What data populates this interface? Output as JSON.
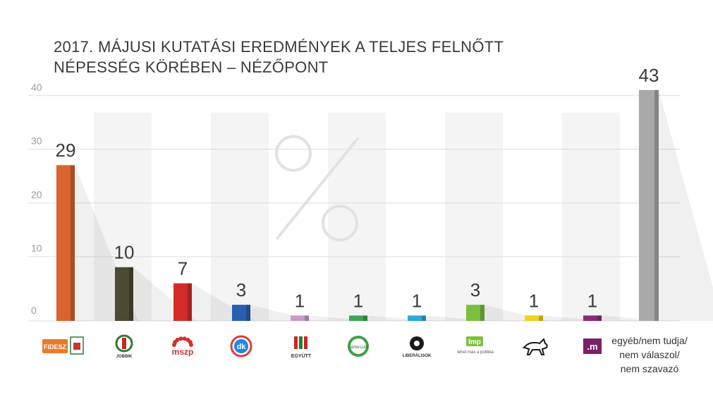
{
  "title_lines": [
    "2017. MÁJUSI KUTATÁSI EREDMÉNYEK A TELJES FELNŐTT",
    "NÉPESSÉG KÖRÉBEN – NÉZŐPONT"
  ],
  "chart_data": {
    "type": "bar",
    "title": "2017. MÁJUSI KUTATÁSI EREDMÉNYEK A TELJES FELNŐTT NÉPESSÉG KÖRÉBEN – NÉZŐPONT",
    "ylim": [
      0,
      43
    ],
    "yticks": [
      0,
      10,
      20,
      30,
      40
    ],
    "grid": true,
    "bars": [
      {
        "party": "FIDESZ-KDNP",
        "value": 29,
        "color": "#d9642e",
        "icon": "fidesz-kdnp-logo",
        "logo_text": "FIDESZ"
      },
      {
        "party": "JOBBIK",
        "value": 10,
        "color": "#4b4a32",
        "icon": "jobbik-logo",
        "logo_text": "JOBBIK"
      },
      {
        "party": "MSZP",
        "value": 7,
        "color": "#d42a2a",
        "icon": "mszp-logo",
        "logo_text": "mszp"
      },
      {
        "party": "DK",
        "value": 3,
        "color": "#2a5fb0",
        "icon": "dk-logo",
        "logo_text": "dk"
      },
      {
        "party": "EGYÜTT",
        "value": 1,
        "color": "#c89ac8",
        "icon": "egyutt-logo",
        "logo_text": "EGYÜTT"
      },
      {
        "party": "Párbeszéd",
        "value": 1,
        "color": "#3aa655",
        "icon": "parbeszed-logo",
        "logo_text": "párbeszéd"
      },
      {
        "party": "LIBERÁLISOK",
        "value": 1,
        "color": "#2ea9db",
        "icon": "liberalisok-logo",
        "logo_text": "LIBERÁLISOK"
      },
      {
        "party": "LMP",
        "value": 3,
        "color": "#7cbf3f",
        "icon": "lmp-logo",
        "logo_text": "lmp",
        "logo_subtext": "lehet más a politika"
      },
      {
        "party": "MKKP",
        "value": 1,
        "color": "#f2d21a",
        "icon": "kutya-party-logo"
      },
      {
        "party": "Momentum",
        "value": 1,
        "color": "#8a2a7a",
        "icon": "momentum-logo",
        "logo_text": ".m"
      },
      {
        "party": "egyéb/nem tudja/nem válaszol/nem szavazó",
        "value": 43,
        "color": "#a9a9a9",
        "icon": "",
        "label_lines": [
          "egyéb/nem tudja/",
          "nem válaszol/",
          "nem szavazó"
        ]
      }
    ]
  }
}
